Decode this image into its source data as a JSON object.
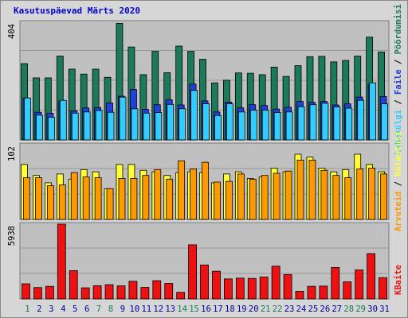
{
  "title": "Kasutuspäevad Märts 2020",
  "colors": {
    "plot_bg": "#c0c0c0",
    "grid": "#989898",
    "hits": "#1a7a5a",
    "files": "#2040dd",
    "pages": "#33ccff",
    "visits": "#ffff33",
    "sites": "#ff9900",
    "kbytes": "#ee1111",
    "day_label": "#1a7a5a",
    "weekend_label": "#1a7a5a",
    "weekday_label": "#000099"
  },
  "chart_data": [
    {
      "type": "bar",
      "name": "top",
      "ymax_label": "404",
      "ylim": [
        0,
        404
      ],
      "legend": [
        "Pöördumisi",
        "Faile",
        "Lehekülgi"
      ],
      "categories": [
        "1",
        "2",
        "3",
        "4",
        "5",
        "6",
        "7",
        "8",
        "9",
        "10",
        "11",
        "12",
        "13",
        "14",
        "15",
        "16",
        "17",
        "18",
        "19",
        "20",
        "21",
        "22",
        "23",
        "24",
        "25",
        "26",
        "27",
        "28",
        "29",
        "30",
        "31"
      ],
      "series": [
        {
          "name": "Pöördumisi",
          "values": [
            262,
            213,
            213,
            288,
            243,
            226,
            243,
            215,
            400,
            319,
            224,
            304,
            231,
            322,
            304,
            277,
            196,
            205,
            230,
            229,
            224,
            250,
            218,
            255,
            286,
            287,
            268,
            273,
            288,
            353,
            302
          ]
        },
        {
          "name": "Faile",
          "values": [
            144,
            95,
            92,
            133,
            100,
            110,
            111,
            127,
            150,
            173,
            105,
            121,
            138,
            120,
            192,
            134,
            96,
            130,
            110,
            121,
            118,
            106,
            112,
            132,
            129,
            132,
            120,
            124,
            147,
            191,
            149
          ]
        },
        {
          "name": "Lehekülgi",
          "values": [
            144,
            85,
            78,
            136,
            92,
            96,
            101,
            95,
            147,
            107,
            92,
            94,
            122,
            107,
            170,
            124,
            84,
            124,
            96,
            102,
            102,
            94,
            96,
            114,
            121,
            126,
            113,
            109,
            136,
            196,
            124
          ]
        }
      ]
    },
    {
      "type": "bar",
      "name": "middle",
      "ymax_label": "102",
      "ylim": [
        0,
        102
      ],
      "legend": [
        "Külastusi",
        "Arvuteid"
      ],
      "categories": [
        "1",
        "2",
        "3",
        "4",
        "5",
        "6",
        "7",
        "8",
        "9",
        "10",
        "11",
        "12",
        "13",
        "14",
        "15",
        "16",
        "17",
        "18",
        "19",
        "20",
        "21",
        "22",
        "23",
        "24",
        "25",
        "26",
        "27",
        "28",
        "29",
        "30",
        "31"
      ],
      "series": [
        {
          "name": "Külastusi",
          "values": [
            75,
            60,
            50,
            62,
            55,
            68,
            65,
            42,
            75,
            75,
            67,
            65,
            60,
            64,
            65,
            64,
            50,
            62,
            65,
            56,
            58,
            70,
            65,
            89,
            85,
            70,
            65,
            68,
            89,
            75,
            65
          ]
        },
        {
          "name": "Arvuteid",
          "values": [
            57,
            57,
            46,
            47,
            64,
            58,
            57,
            42,
            56,
            56,
            60,
            68,
            55,
            80,
            69,
            78,
            51,
            52,
            62,
            55,
            60,
            63,
            66,
            81,
            81,
            67,
            60,
            57,
            69,
            70,
            62
          ]
        }
      ]
    },
    {
      "type": "bar",
      "name": "bottom",
      "ymax_label": "5938",
      "ylim": [
        0,
        5938
      ],
      "legend": [
        "KBaite"
      ],
      "categories": [
        "1",
        "2",
        "3",
        "4",
        "5",
        "6",
        "7",
        "8",
        "9",
        "10",
        "11",
        "12",
        "13",
        "14",
        "15",
        "16",
        "17",
        "18",
        "19",
        "20",
        "21",
        "22",
        "23",
        "24",
        "25",
        "26",
        "27",
        "28",
        "29",
        "30",
        "31"
      ],
      "series": [
        {
          "name": "KBaite",
          "values": [
            1200,
            900,
            1000,
            5938,
            2250,
            880,
            1050,
            1130,
            1040,
            1400,
            910,
            1450,
            1230,
            525,
            4300,
            2700,
            2200,
            1590,
            1650,
            1630,
            1740,
            2600,
            1940,
            600,
            1000,
            1020,
            2500,
            1360,
            2300,
            3600,
            1690
          ]
        }
      ]
    }
  ],
  "day_colors": [
    "day",
    "weekday",
    "weekday",
    "weekday",
    "weekday",
    "weekday",
    "day",
    "day",
    "weekday",
    "weekday",
    "weekday",
    "weekday",
    "weekday",
    "day",
    "day",
    "weekday",
    "weekday",
    "weekday",
    "weekday",
    "weekday",
    "day",
    "day",
    "weekday",
    "weekday",
    "weekday",
    "weekday",
    "weekday",
    "day",
    "day",
    "weekday",
    "weekday"
  ]
}
